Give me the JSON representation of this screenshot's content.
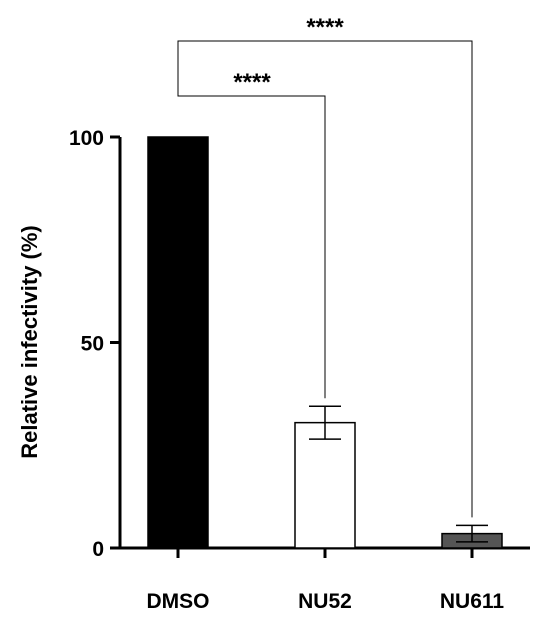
{
  "chart_data": {
    "type": "bar",
    "title": "",
    "xlabel": "",
    "ylabel": "Relative infectivity (%)",
    "ylim": [
      0,
      100
    ],
    "yticks": [
      0,
      50,
      100
    ],
    "grid": false,
    "categories": [
      "DMSO",
      "NU52",
      "NU611"
    ],
    "values": [
      100,
      30.5,
      3.5
    ],
    "errors": [
      0,
      4,
      2
    ],
    "bar_colors": [
      "#000000",
      "#ffffff",
      "#555555"
    ],
    "significance": [
      {
        "from": "DMSO",
        "to": "NU52",
        "label": "****"
      },
      {
        "from": "DMSO",
        "to": "NU611",
        "label": "****"
      }
    ]
  }
}
